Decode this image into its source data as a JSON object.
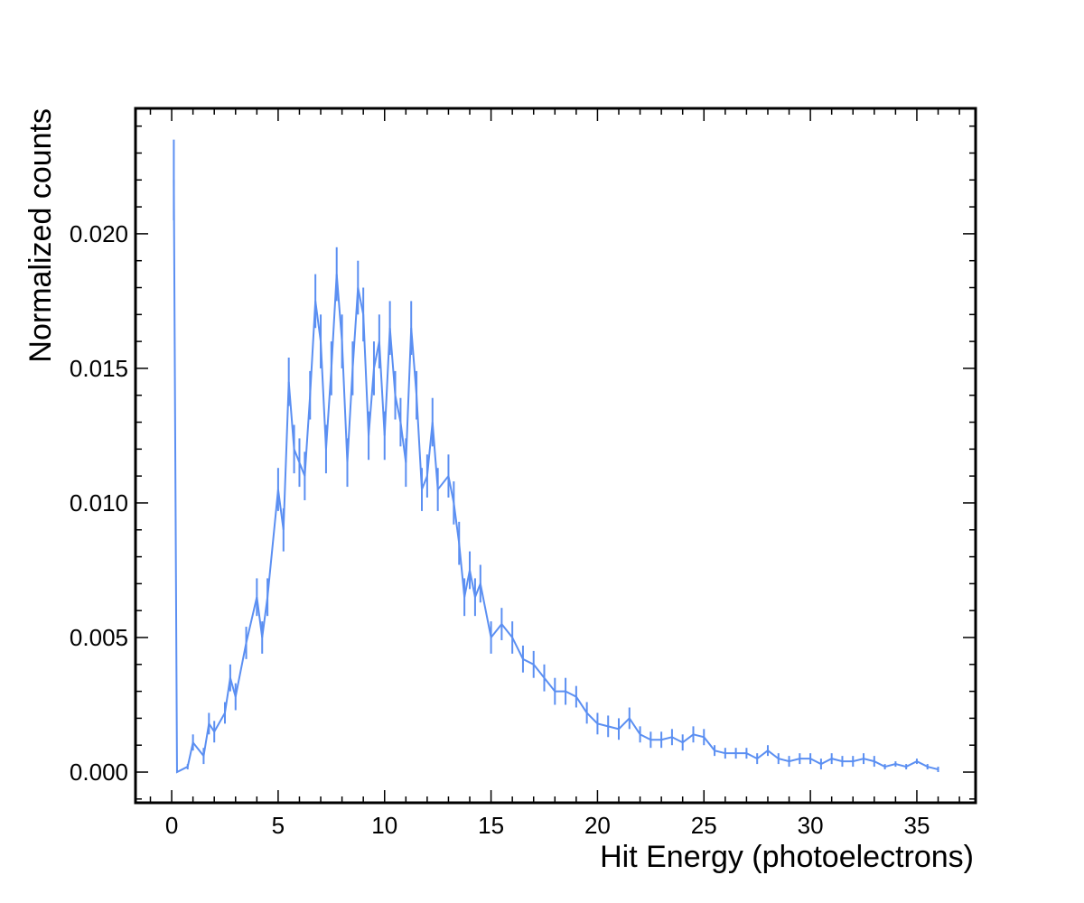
{
  "chart_data": {
    "type": "errorline",
    "xlabel": "Hit Energy (photoelectrons)",
    "ylabel": "Normalized counts",
    "color": "#5b8ff2",
    "x": [
      0.1,
      0.25,
      0.75,
      1.0,
      1.5,
      1.75,
      2.0,
      2.5,
      2.75,
      3.0,
      3.5,
      4.0,
      4.25,
      4.5,
      5.0,
      5.25,
      5.5,
      5.75,
      6.0,
      6.25,
      6.5,
      6.75,
      7.0,
      7.25,
      7.5,
      7.75,
      8.0,
      8.25,
      8.5,
      8.75,
      9.0,
      9.25,
      9.5,
      9.75,
      10.0,
      10.25,
      10.5,
      10.75,
      11.0,
      11.25,
      11.5,
      11.75,
      12.0,
      12.25,
      12.5,
      13.0,
      13.25,
      13.5,
      13.75,
      14.0,
      14.25,
      14.5,
      15.0,
      15.5,
      16.0,
      16.5,
      17.0,
      17.5,
      18.0,
      18.5,
      19.0,
      19.5,
      20.0,
      20.5,
      21.0,
      21.5,
      22.0,
      22.5,
      23.0,
      23.5,
      24.0,
      24.5,
      25.0,
      25.5,
      26.0,
      26.5,
      27.0,
      27.5,
      28.0,
      28.5,
      29.0,
      29.5,
      30.0,
      30.5,
      31.0,
      31.5,
      32.0,
      32.5,
      33.0,
      33.5,
      34.0,
      34.5,
      35.0,
      35.5,
      36.0
    ],
    "values": [
      0.022,
      0,
      0.0002,
      0.0011,
      0.0006,
      0.0018,
      0.0015,
      0.0022,
      0.0035,
      0.0028,
      0.0048,
      0.0065,
      0.005,
      0.0065,
      0.0105,
      0.009,
      0.0145,
      0.012,
      0.0115,
      0.011,
      0.014,
      0.0175,
      0.016,
      0.012,
      0.015,
      0.0185,
      0.016,
      0.0115,
      0.015,
      0.018,
      0.017,
      0.0125,
      0.015,
      0.016,
      0.0125,
      0.0165,
      0.014,
      0.013,
      0.0115,
      0.0165,
      0.014,
      0.0105,
      0.011,
      0.013,
      0.0105,
      0.011,
      0.01,
      0.0085,
      0.0065,
      0.0075,
      0.0065,
      0.007,
      0.005,
      0.0055,
      0.005,
      0.0042,
      0.004,
      0.0035,
      0.003,
      0.003,
      0.0028,
      0.0022,
      0.0018,
      0.0017,
      0.0016,
      0.002,
      0.0014,
      0.0012,
      0.0012,
      0.0013,
      0.0011,
      0.0014,
      0.0013,
      0.0008,
      0.0007,
      0.0007,
      0.0007,
      0.0005,
      0.0008,
      0.0005,
      0.0004,
      0.0005,
      0.0005,
      0.0003,
      0.0005,
      0.0004,
      0.0004,
      0.0005,
      0.0004,
      0.0002,
      0.0003,
      0.0002,
      0.0004,
      0.0002,
      0.0001
    ],
    "errors": [
      0.0015,
      0,
      0.0001,
      0.0003,
      0.0003,
      0.0004,
      0.0004,
      0.0004,
      0.0005,
      0.0005,
      0.0006,
      0.0007,
      0.0006,
      0.0007,
      0.0008,
      0.0008,
      0.0009,
      0.0009,
      0.0009,
      0.0009,
      0.0009,
      0.001,
      0.001,
      0.0009,
      0.001,
      0.001,
      0.001,
      0.0009,
      0.001,
      0.001,
      0.001,
      0.0009,
      0.001,
      0.001,
      0.0009,
      0.001,
      0.0009,
      0.0009,
      0.0009,
      0.001,
      0.0009,
      0.0008,
      0.0008,
      0.0009,
      0.0008,
      0.0008,
      0.0008,
      0.0008,
      0.0007,
      0.0007,
      0.0007,
      0.0007,
      0.0006,
      0.0006,
      0.0006,
      0.0005,
      0.0005,
      0.0005,
      0.0005,
      0.0005,
      0.0004,
      0.0004,
      0.0004,
      0.0004,
      0.0004,
      0.0004,
      0.0003,
      0.0003,
      0.0003,
      0.0003,
      0.0003,
      0.0003,
      0.0003,
      0.0002,
      0.0002,
      0.0002,
      0.0002,
      0.0002,
      0.0002,
      0.0002,
      0.0002,
      0.0002,
      0.0002,
      0.0002,
      0.0002,
      0.0002,
      0.0002,
      0.0002,
      0.0002,
      0.0001,
      0.0001,
      0.0001,
      0.0001,
      0.0001,
      0.0001
    ],
    "xlim": [
      -1.7,
      37.76
    ],
    "ylim": [
      -0.00114,
      0.02466
    ],
    "xticks": [
      0,
      5,
      10,
      15,
      20,
      25,
      30,
      35
    ],
    "yticks": [
      {
        "value": 0,
        "label": "0.000"
      },
      0.005,
      {
        "value": 0.01,
        "label": "0.010"
      },
      0.015,
      {
        "value": 0.02,
        "label": "0.020"
      }
    ],
    "minor_ticks": true
  }
}
